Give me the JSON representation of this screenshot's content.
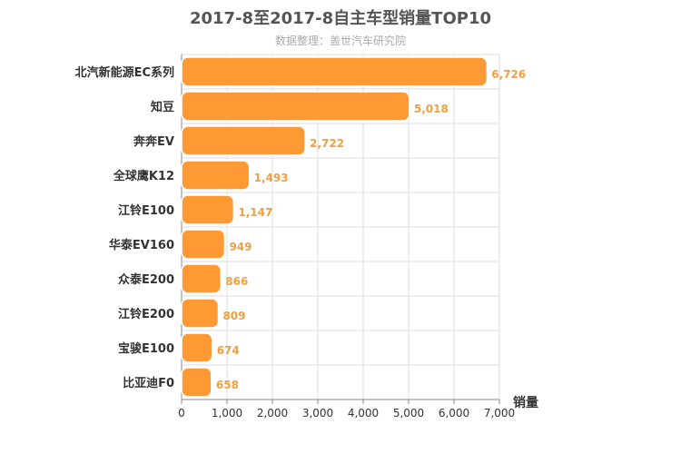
{
  "chart_data": {
    "type": "bar",
    "orientation": "horizontal",
    "title": "2017-8至2017-8自主车型销量TOP10",
    "subtitle": "数据整理：盖世汽车研究院",
    "categories": [
      "北汽新能源EC系列",
      "知豆",
      "奔奔EV",
      "全球鹰K12",
      "江铃E100",
      "华泰EV160",
      "众泰E200",
      "江铃E200",
      "宝骏E100",
      "比亚迪F0"
    ],
    "values": [
      6726,
      5018,
      2722,
      1493,
      1147,
      949,
      866,
      809,
      674,
      658
    ],
    "value_labels": [
      "6,726",
      "5,018",
      "2,722",
      "1,493",
      "1,147",
      "949",
      "866",
      "809",
      "674",
      "658"
    ],
    "xlabel": "销量",
    "ylabel": "",
    "xlim": [
      0,
      7000
    ],
    "x_ticks": [
      0,
      1000,
      2000,
      3000,
      4000,
      5000,
      6000,
      7000
    ],
    "x_tick_labels": [
      "0",
      "1,000",
      "2,000",
      "3,000",
      "4,000",
      "5,000",
      "6,000",
      "7,000"
    ],
    "grid": true,
    "colors": {
      "bar": "#ff9933",
      "bar_border": "#ffffff",
      "value_label": "#f0a040",
      "grid": "#dddddd",
      "axis": "#888888"
    }
  }
}
